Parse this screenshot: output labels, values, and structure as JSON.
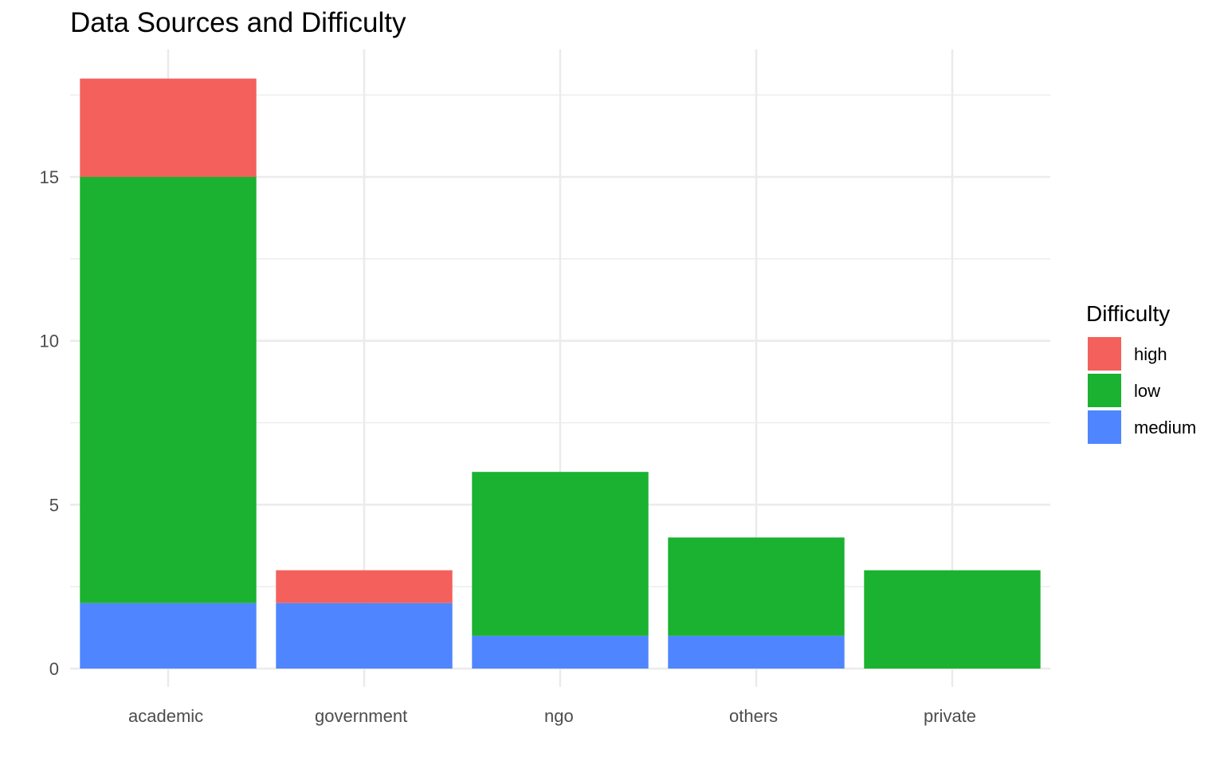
{
  "chart_data": {
    "type": "bar",
    "stacked": true,
    "title": "Data Sources and Difficulty",
    "xlabel": "",
    "ylabel": "",
    "categories": [
      "academic",
      "government",
      "ngo",
      "others",
      "private"
    ],
    "series": [
      {
        "name": "medium",
        "color": "#4f86ff",
        "values": [
          2,
          2,
          1,
          1,
          0
        ]
      },
      {
        "name": "low",
        "color": "#1ab230",
        "values": [
          13,
          0,
          5,
          3,
          3
        ]
      },
      {
        "name": "high",
        "color": "#f4605c",
        "values": [
          3,
          1,
          0,
          0,
          0
        ]
      }
    ],
    "stack_order": [
      "medium",
      "low",
      "high"
    ],
    "ylim": [
      0,
      18.9
    ],
    "y_ticks": [
      0,
      5,
      10,
      15
    ],
    "y_minor_ticks": [
      2.5,
      7.5,
      12.5,
      17.5
    ],
    "grid": true,
    "legend": {
      "title": "Difficulty",
      "position": "right",
      "entries": [
        "high",
        "low",
        "medium"
      ]
    }
  }
}
